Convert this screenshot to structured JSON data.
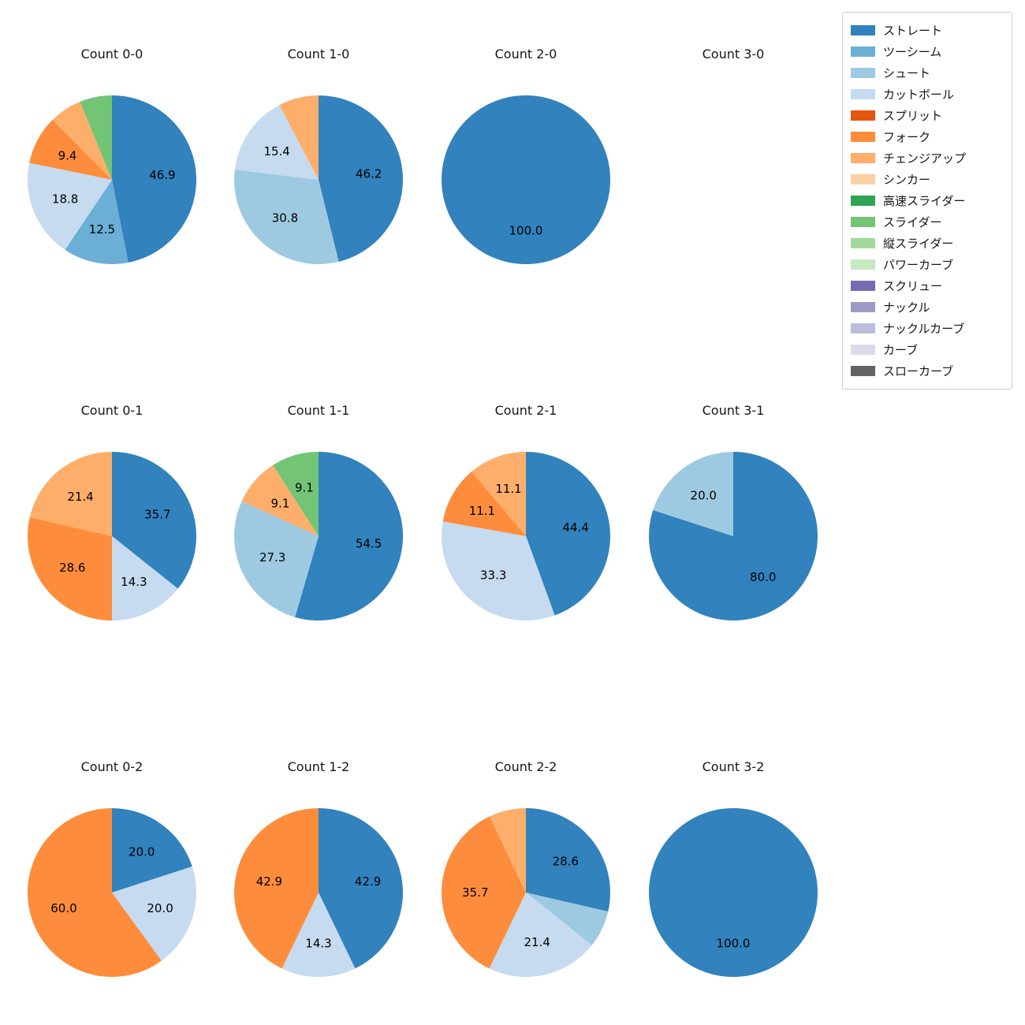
{
  "legend": {
    "items": [
      {
        "label": "ストレート",
        "color": "#3182bd"
      },
      {
        "label": "ツーシーム",
        "color": "#6baed6"
      },
      {
        "label": "シュート",
        "color": "#9ecae1"
      },
      {
        "label": "カットボール",
        "color": "#c6dbef"
      },
      {
        "label": "スプリット",
        "color": "#e6550d"
      },
      {
        "label": "フォーク",
        "color": "#fd8d3c"
      },
      {
        "label": "チェンジアップ",
        "color": "#fdae6b"
      },
      {
        "label": "シンカー",
        "color": "#fdd0a2"
      },
      {
        "label": "高速スライダー",
        "color": "#31a354"
      },
      {
        "label": "スライダー",
        "color": "#74c476"
      },
      {
        "label": "縦スライダー",
        "color": "#a1d99b"
      },
      {
        "label": "パワーカーブ",
        "color": "#c7e9c0"
      },
      {
        "label": "スクリュー",
        "color": "#756bb1"
      },
      {
        "label": "ナックル",
        "color": "#9e9ac8"
      },
      {
        "label": "ナックルカーブ",
        "color": "#bcbddc"
      },
      {
        "label": "カーブ",
        "color": "#dadaeb"
      },
      {
        "label": "スローカーブ",
        "color": "#636363"
      }
    ]
  },
  "chart_data": [
    {
      "type": "pie",
      "title": "Count 0-0",
      "unit": "%",
      "start_angle": "top",
      "direction": "clockwise",
      "slices": [
        {
          "label": "ストレート",
          "value": 46.9,
          "text": "46.9"
        },
        {
          "label": "ツーシーム",
          "value": 12.5,
          "text": "12.5"
        },
        {
          "label": "カットボール",
          "value": 18.8,
          "text": "18.8"
        },
        {
          "label": "フォーク",
          "value": 9.4,
          "text": "9.4"
        },
        {
          "label": "チェンジアップ",
          "value": 6.2,
          "text": ""
        },
        {
          "label": "スライダー",
          "value": 6.2,
          "text": ""
        }
      ]
    },
    {
      "type": "pie",
      "title": "Count 1-0",
      "unit": "%",
      "start_angle": "top",
      "direction": "clockwise",
      "slices": [
        {
          "label": "ストレート",
          "value": 46.2,
          "text": "46.2"
        },
        {
          "label": "シュート",
          "value": 30.8,
          "text": "30.8"
        },
        {
          "label": "カットボール",
          "value": 15.4,
          "text": "15.4"
        },
        {
          "label": "チェンジアップ",
          "value": 7.7,
          "text": ""
        }
      ]
    },
    {
      "type": "pie",
      "title": "Count 2-0",
      "unit": "%",
      "start_angle": "top",
      "direction": "clockwise",
      "slices": [
        {
          "label": "ストレート",
          "value": 100.0,
          "text": "100.0"
        }
      ]
    },
    {
      "type": "pie",
      "title": "Count 3-0",
      "unit": "%",
      "start_angle": "top",
      "direction": "clockwise",
      "slices": []
    },
    {
      "type": "pie",
      "title": "Count 0-1",
      "unit": "%",
      "start_angle": "top",
      "direction": "clockwise",
      "slices": [
        {
          "label": "ストレート",
          "value": 35.7,
          "text": "35.7"
        },
        {
          "label": "カットボール",
          "value": 14.3,
          "text": "14.3"
        },
        {
          "label": "フォーク",
          "value": 28.6,
          "text": "28.6"
        },
        {
          "label": "チェンジアップ",
          "value": 21.4,
          "text": "21.4"
        }
      ]
    },
    {
      "type": "pie",
      "title": "Count 1-1",
      "unit": "%",
      "start_angle": "top",
      "direction": "clockwise",
      "slices": [
        {
          "label": "ストレート",
          "value": 54.5,
          "text": "54.5"
        },
        {
          "label": "シュート",
          "value": 27.3,
          "text": "27.3"
        },
        {
          "label": "チェンジアップ",
          "value": 9.1,
          "text": "9.1"
        },
        {
          "label": "スライダー",
          "value": 9.1,
          "text": "9.1"
        }
      ]
    },
    {
      "type": "pie",
      "title": "Count 2-1",
      "unit": "%",
      "start_angle": "top",
      "direction": "clockwise",
      "slices": [
        {
          "label": "ストレート",
          "value": 44.4,
          "text": "44.4"
        },
        {
          "label": "カットボール",
          "value": 33.3,
          "text": "33.3"
        },
        {
          "label": "フォーク",
          "value": 11.1,
          "text": "11.1"
        },
        {
          "label": "チェンジアップ",
          "value": 11.1,
          "text": "11.1"
        }
      ]
    },
    {
      "type": "pie",
      "title": "Count 3-1",
      "unit": "%",
      "start_angle": "top",
      "direction": "clockwise",
      "slices": [
        {
          "label": "ストレート",
          "value": 80.0,
          "text": "80.0"
        },
        {
          "label": "シュート",
          "value": 20.0,
          "text": "20.0"
        }
      ]
    },
    {
      "type": "pie",
      "title": "Count 0-2",
      "unit": "%",
      "start_angle": "top",
      "direction": "clockwise",
      "slices": [
        {
          "label": "ストレート",
          "value": 20.0,
          "text": "20.0"
        },
        {
          "label": "カットボール",
          "value": 20.0,
          "text": "20.0"
        },
        {
          "label": "フォーク",
          "value": 60.0,
          "text": "60.0"
        }
      ]
    },
    {
      "type": "pie",
      "title": "Count 1-2",
      "unit": "%",
      "start_angle": "top",
      "direction": "clockwise",
      "slices": [
        {
          "label": "ストレート",
          "value": 42.9,
          "text": "42.9"
        },
        {
          "label": "カットボール",
          "value": 14.3,
          "text": "14.3"
        },
        {
          "label": "フォーク",
          "value": 42.9,
          "text": "42.9"
        }
      ]
    },
    {
      "type": "pie",
      "title": "Count 2-2",
      "unit": "%",
      "start_angle": "top",
      "direction": "clockwise",
      "slices": [
        {
          "label": "ストレート",
          "value": 28.6,
          "text": "28.6"
        },
        {
          "label": "シュート",
          "value": 7.1,
          "text": ""
        },
        {
          "label": "カットボール",
          "value": 21.4,
          "text": "21.4"
        },
        {
          "label": "フォーク",
          "value": 35.7,
          "text": "35.7"
        },
        {
          "label": "チェンジアップ",
          "value": 7.1,
          "text": ""
        }
      ]
    },
    {
      "type": "pie",
      "title": "Count 3-2",
      "unit": "%",
      "start_angle": "top",
      "direction": "clockwise",
      "slices": [
        {
          "label": "ストレート",
          "value": 100.0,
          "text": "100.0"
        }
      ]
    }
  ]
}
